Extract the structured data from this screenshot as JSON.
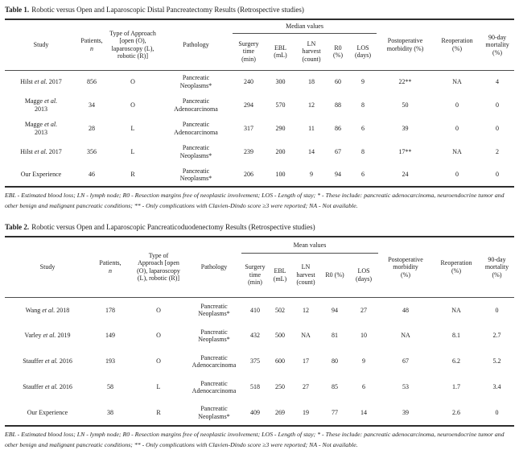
{
  "page": {
    "text_color": "#1b1b1b",
    "rule_color": "#2e2e2e",
    "background": "#ffffff"
  },
  "tables": [
    {
      "caption_label": "Table 1.",
      "caption_text": "Robotic versus Open and Laparoscopic Distal Pancreatectomy Results (Retrospective studies)",
      "group_header": "Median values",
      "headers": {
        "study": "Study",
        "patients_line1": "Patients,",
        "patients_line2": "n",
        "approach": "Type of Approach\n[open (O),\nlaparoscopy (L),\nrobotic (R)]",
        "pathology": "Pathology",
        "surgery": "Surgery\ntime\n(min)",
        "ebl": "EBL\n(mL)",
        "ln": "LN\nharvest\n(count)",
        "r0": "R0\n(%)",
        "los": "LOS\n(days)",
        "postop": "Postoperative\nmorbidity (%)",
        "reop": "Reoperation\n(%)",
        "mortality": "90-day\nmortality\n(%)"
      },
      "rows": [
        [
          "Hilst et al. 2017",
          "856",
          "O",
          "Pancreatic\nNeoplasms*",
          "240",
          "300",
          "18",
          "60",
          "9",
          "22**",
          "NA",
          "4"
        ],
        [
          "Magge et al.\n2013",
          "34",
          "O",
          "Pancreatic\nAdenocarcinoma",
          "294",
          "570",
          "12",
          "88",
          "8",
          "50",
          "0",
          "0"
        ],
        [
          "Magge et al.\n2013",
          "28",
          "L",
          "Pancreatic\nAdenocarcinoma",
          "317",
          "290",
          "11",
          "86",
          "6",
          "39",
          "0",
          "0"
        ],
        [
          "Hilst et al. 2017",
          "356",
          "L",
          "Pancreatic\nNeoplasms*",
          "239",
          "200",
          "14",
          "67",
          "8",
          "17**",
          "NA",
          "2"
        ],
        [
          "Our Experience",
          "46",
          "R",
          "Pancreatic\nNeoplasms*",
          "206",
          "100",
          "9",
          "94",
          "6",
          "24",
          "0",
          "0"
        ]
      ],
      "footnote": "EBL - Estimated blood loss; LN - lymph node; R0 - Resection margins free of neoplastic involvement; LOS - Length of stay; * - These include: pancreatic adenocarcinoma, neuroendocrine tumor and other benign and malignant pancreatic conditions; ** - Only complications with Clavien-Dindo score ≥3 were reported; NA - Not available."
    },
    {
      "caption_label": "Table 2.",
      "caption_text": "Robotic versus Open and Laparoscopic Pancreaticoduodenectomy Results (Retrospective studies)",
      "group_header": "Mean values",
      "headers": {
        "study": "Study",
        "patients_line1": "Patients,",
        "patients_line2": "n",
        "approach": "Type of\nApproach [open\n(O), laparoscopy\n(L), robotic (R)]",
        "pathology": "Pathology",
        "surgery": "Surgery\ntime\n(min)",
        "ebl": "EBL\n(mL)",
        "ln": "LN\nharvest\n(count)",
        "r0": "R0 (%)",
        "los": "LOS\n(days)",
        "postop": "Postoperative\nmorbidity\n(%)",
        "reop": "Reoperation\n(%)",
        "mortality": "90-day\nmortality\n(%)"
      },
      "rows": [
        [
          "Wang et al. 2018",
          "178",
          "O",
          "Pancreatic\nNeoplasms*",
          "410",
          "502",
          "12",
          "94",
          "27",
          "48",
          "NA",
          "0"
        ],
        [
          "Varley et al. 2019",
          "149",
          "O",
          "Pancreatic\nNeoplasms*",
          "432",
          "500",
          "NA",
          "81",
          "10",
          "NA",
          "8.1",
          "2.7"
        ],
        [
          "Stauffer et al. 2016",
          "193",
          "O",
          "Pancreatic\nAdenocarcinoma",
          "375",
          "600",
          "17",
          "80",
          "9",
          "67",
          "6.2",
          "5.2"
        ],
        [
          "Stauffer et al. 2016",
          "58",
          "L",
          "Pancreatic\nAdenocarcinoma",
          "518",
          "250",
          "27",
          "85",
          "6",
          "53",
          "1.7",
          "3.4"
        ],
        [
          "Our Experience",
          "38",
          "R",
          "Pancreatic\nNeoplasms*",
          "409",
          "269",
          "19",
          "77",
          "14",
          "39",
          "2.6",
          "0"
        ]
      ],
      "footnote": "EBL - Estimated blood loss; LN - lymph node; R0 - Resection margins free of neoplastic involvement; LOS - Length of stay; * - These include: pancreatic adenocarcinoma, neuroendocrine tumor and other benign and malignant pancreatic conditions; ** - Only complications with Clavien-Dindo score ≥3 were reported; NA - Not available."
    }
  ]
}
